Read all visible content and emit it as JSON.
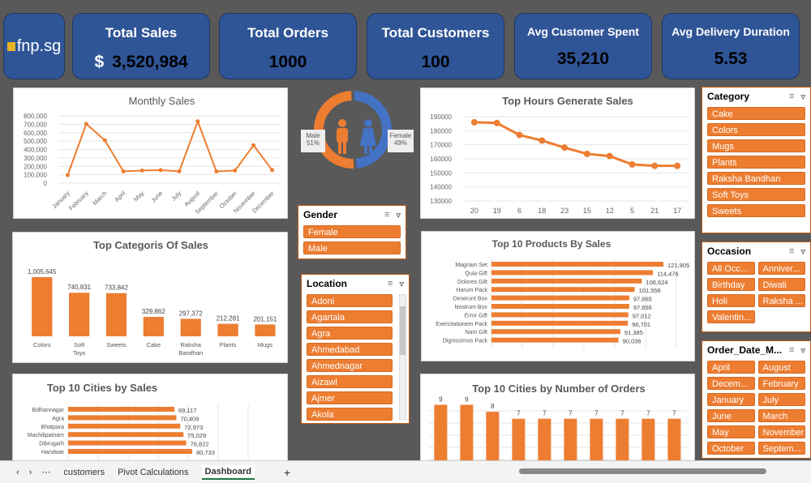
{
  "logo": {
    "text": "fnp.sg"
  },
  "kpis": [
    {
      "title": "Total Sales",
      "currency": "$",
      "value": "3,520,984"
    },
    {
      "title": "Total Orders",
      "value": "1000"
    },
    {
      "title": "Total Customers",
      "value": "100"
    },
    {
      "title": "Avg Customer Spent",
      "value": "35,210"
    },
    {
      "title": "Avg Delivery Duration",
      "value": "5.53"
    }
  ],
  "colors": {
    "accent": "#ed7d31",
    "kpi": "#2f5597",
    "female": "#4472c4"
  },
  "gender_chart": {
    "male_label": "Male",
    "male_pct": "51%",
    "female_label": "Female",
    "female_pct": "49%",
    "male_value": 51,
    "female_value": 49
  },
  "chart_data": [
    {
      "id": "monthly",
      "type": "line",
      "title": "Monthly Sales",
      "categories": [
        "January",
        "February",
        "March",
        "April",
        "May",
        "June",
        "July",
        "August",
        "September",
        "October",
        "November",
        "December"
      ],
      "values": [
        95000,
        705000,
        510000,
        140000,
        150000,
        155000,
        140000,
        735000,
        140000,
        150000,
        450000,
        155000
      ],
      "ylim": [
        0,
        800000
      ],
      "yticks": [
        "0",
        "100,000",
        "200,000",
        "300,000",
        "400,000",
        "500,000",
        "600,000",
        "700,000",
        "800,000"
      ],
      "grid": true
    },
    {
      "id": "hours",
      "type": "line",
      "title": "Top Hours Generate Sales",
      "categories": [
        "20",
        "19",
        "6",
        "18",
        "23",
        "15",
        "12",
        "5",
        "21",
        "17"
      ],
      "values": [
        186000,
        185500,
        177000,
        173000,
        168000,
        163500,
        162000,
        156000,
        155000,
        155000
      ],
      "ylim": [
        130000,
        190000
      ],
      "yticks": [
        "130000",
        "140000",
        "150000",
        "160000",
        "170000",
        "180000",
        "190000"
      ],
      "grid": true
    },
    {
      "id": "categories",
      "type": "bar",
      "title": "Top Categoris Of Sales",
      "categories": [
        "Colors",
        "Soft Toys",
        "Sweets",
        "Cake",
        "Raksha Bandhan",
        "Plants",
        "Mugs"
      ],
      "values": [
        1005645,
        740831,
        733842,
        329862,
        297372,
        212281,
        201151
      ],
      "labels": [
        "1,005,645",
        "740,831",
        "733,842",
        "329,862",
        "297,372",
        "212,281",
        "201,151"
      ]
    },
    {
      "id": "products",
      "type": "bar",
      "orientation": "horizontal",
      "title": "Top 10 Products By Sales",
      "categories": [
        "Magnam Set",
        "Quia Gift",
        "Dolores Gift",
        "Harum Pack",
        "Deserunt Box",
        "Nostrum Box",
        "Error Gift",
        "Exercitationem Pack",
        "Nam Gift",
        "Dignissimos Pack"
      ],
      "values": [
        121905,
        114476,
        106624,
        101556,
        97665,
        97656,
        97012,
        96701,
        91385,
        90036
      ],
      "labels": [
        "121,905",
        "114,476",
        "106,624",
        "101,556",
        "97,665",
        "97,656",
        "97,012",
        "96,701",
        "91,385",
        "90,036"
      ]
    },
    {
      "id": "cities_sales",
      "type": "bar",
      "orientation": "horizontal",
      "title": "Top 10 Cities by Sales",
      "categories": [
        "Bidhannagar",
        "Agra",
        "Bhatpara",
        "Machilipatnam",
        "Dibrugarh",
        "Haridwar"
      ],
      "values": [
        69117,
        70409,
        72973,
        75029,
        76822,
        80733
      ],
      "labels": [
        "69,117",
        "70,409",
        "72,973",
        "75,029",
        "76,822",
        "80,733"
      ]
    },
    {
      "id": "cities_orders",
      "type": "bar",
      "title": "Top 10 Cities by Number of Orders",
      "values": [
        9,
        9,
        8,
        7,
        7,
        7,
        7,
        7,
        7,
        7
      ],
      "labels": [
        "9",
        "9",
        "8",
        "7",
        "7",
        "7",
        "7",
        "7",
        "7",
        "7"
      ]
    }
  ],
  "slicers": {
    "gender": {
      "title": "Gender",
      "items": [
        "Female",
        "Male"
      ]
    },
    "location": {
      "title": "Location",
      "items": [
        "Adoni",
        "Agartala",
        "Agra",
        "Ahmedabad",
        "Ahmednagar",
        "Aizawl",
        "Ajmer",
        "Akola"
      ]
    },
    "category": {
      "title": "Category",
      "items": [
        "Cake",
        "Colors",
        "Mugs",
        "Plants",
        "Raksha Bandhan",
        "Soft Toys",
        "Sweets"
      ]
    },
    "occasion": {
      "title": "Occasion",
      "items": [
        "All Occ...",
        "Anniver...",
        "Birthday",
        "Diwali",
        "Holi",
        "Raksha ...",
        "Valentin..."
      ]
    },
    "order_month": {
      "title": "Order_Date_M...",
      "items": [
        "April",
        "August",
        "Decem...",
        "February",
        "January",
        "July",
        "June",
        "March",
        "May",
        "November",
        "October",
        "Septem..."
      ]
    }
  },
  "sheet_tabs": {
    "tabs": [
      "customers",
      "Pivot Calculations",
      "Dashboard"
    ],
    "active": "Dashboard"
  }
}
